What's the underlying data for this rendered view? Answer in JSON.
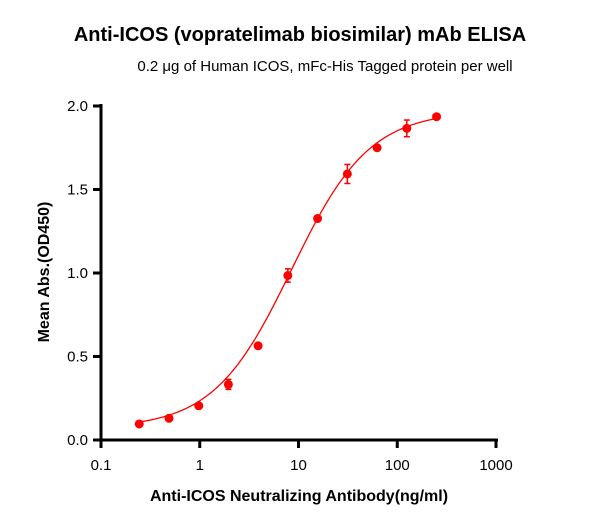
{
  "chart_data": {
    "type": "scatter",
    "title": "Anti-ICOS (vopratelimab biosimilar) mAb ELISA",
    "subtitle": "0.2 μg of Human ICOS, mFc-His Tagged protein per well",
    "xlabel": "Anti-ICOS Neutralizing Antibody(ng/ml)",
    "ylabel": "Mean Abs.(OD450)",
    "xscale": "log",
    "xlim": [
      0.1,
      1000
    ],
    "ylim": [
      0,
      2.0
    ],
    "xticks": [
      "0.1",
      "1",
      "10",
      "100",
      "1000"
    ],
    "yticks": [
      "0.0",
      "0.5",
      "1.0",
      "1.5",
      "2.0"
    ],
    "grid": false,
    "color": "#ff0000",
    "fit_curve": "sigmoidal (4-parameter) fit",
    "series": [
      {
        "x": [
          0.244,
          0.488,
          0.977,
          1.95,
          3.9,
          7.8,
          15.6,
          31.25,
          62.5,
          125,
          250
        ],
        "y": [
          0.096,
          0.13,
          0.205,
          0.333,
          0.564,
          0.985,
          1.326,
          1.593,
          1.75,
          1.866,
          1.936
        ],
        "error": [
          0.01,
          0.01,
          0.015,
          0.03,
          0.015,
          0.04,
          0.015,
          0.057,
          0.015,
          0.05,
          0.01
        ]
      }
    ]
  }
}
